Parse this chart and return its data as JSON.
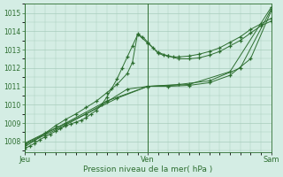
{
  "title": "",
  "xlabel": "Pression niveau de la mer( hPa )",
  "ylabel": "",
  "bg_color": "#d4ede4",
  "grid_color": "#a8ccbc",
  "line_color": "#2d6e30",
  "xlim": [
    0,
    48
  ],
  "ylim": [
    1007.4,
    1015.5
  ],
  "yticks": [
    1008,
    1009,
    1010,
    1011,
    1012,
    1013,
    1014,
    1015
  ],
  "xtick_positions": [
    0,
    24,
    48
  ],
  "xtick_labels": [
    "Jeu",
    "Ven",
    "Sam"
  ],
  "series": [
    {
      "x": [
        0,
        1,
        2,
        3,
        4,
        5,
        6,
        7,
        8,
        9,
        10,
        11,
        12,
        13,
        14,
        15,
        16,
        17,
        18,
        19,
        20,
        21,
        22,
        23,
        24,
        25,
        26,
        27,
        28,
        29,
        30,
        32,
        34,
        36,
        38,
        40,
        42,
        44,
        46,
        48
      ],
      "y": [
        1007.6,
        1007.75,
        1007.9,
        1008.1,
        1008.25,
        1008.4,
        1008.55,
        1008.7,
        1008.85,
        1008.95,
        1009.05,
        1009.15,
        1009.3,
        1009.5,
        1009.7,
        1010.0,
        1010.4,
        1010.9,
        1011.4,
        1012.0,
        1012.6,
        1013.2,
        1013.8,
        1013.7,
        1013.4,
        1013.1,
        1012.8,
        1012.7,
        1012.65,
        1012.6,
        1012.6,
        1012.65,
        1012.75,
        1012.9,
        1013.1,
        1013.4,
        1013.7,
        1014.1,
        1014.4,
        1014.7
      ],
      "marker": "+"
    },
    {
      "x": [
        0,
        2,
        4,
        6,
        8,
        10,
        12,
        14,
        16,
        18,
        20,
        21,
        22,
        24,
        26,
        28,
        30,
        32,
        34,
        36,
        38,
        40,
        42,
        44,
        46,
        48
      ],
      "y": [
        1007.7,
        1008.05,
        1008.45,
        1008.85,
        1009.2,
        1009.5,
        1009.85,
        1010.2,
        1010.65,
        1011.1,
        1011.7,
        1012.3,
        1013.85,
        1013.35,
        1012.85,
        1012.65,
        1012.5,
        1012.5,
        1012.55,
        1012.7,
        1012.9,
        1013.2,
        1013.5,
        1013.9,
        1014.3,
        1014.55
      ],
      "marker": "+"
    },
    {
      "x": [
        0,
        4,
        8,
        12,
        16,
        20,
        24,
        28,
        32,
        36,
        40,
        44,
        48
      ],
      "y": [
        1007.8,
        1008.35,
        1008.9,
        1009.5,
        1010.15,
        1010.85,
        1011.0,
        1011.0,
        1011.05,
        1011.2,
        1011.6,
        1012.5,
        1015.1
      ],
      "marker": "+"
    },
    {
      "x": [
        0,
        6,
        12,
        18,
        24,
        30,
        36,
        42,
        48
      ],
      "y": [
        1007.85,
        1008.7,
        1009.5,
        1010.35,
        1011.0,
        1011.1,
        1011.3,
        1012.0,
        1015.2
      ],
      "marker": "+"
    },
    {
      "x": [
        0,
        8,
        16,
        24,
        32,
        40,
        48
      ],
      "y": [
        1007.9,
        1009.0,
        1010.2,
        1011.0,
        1011.1,
        1011.8,
        1015.3
      ],
      "marker": "+"
    }
  ]
}
